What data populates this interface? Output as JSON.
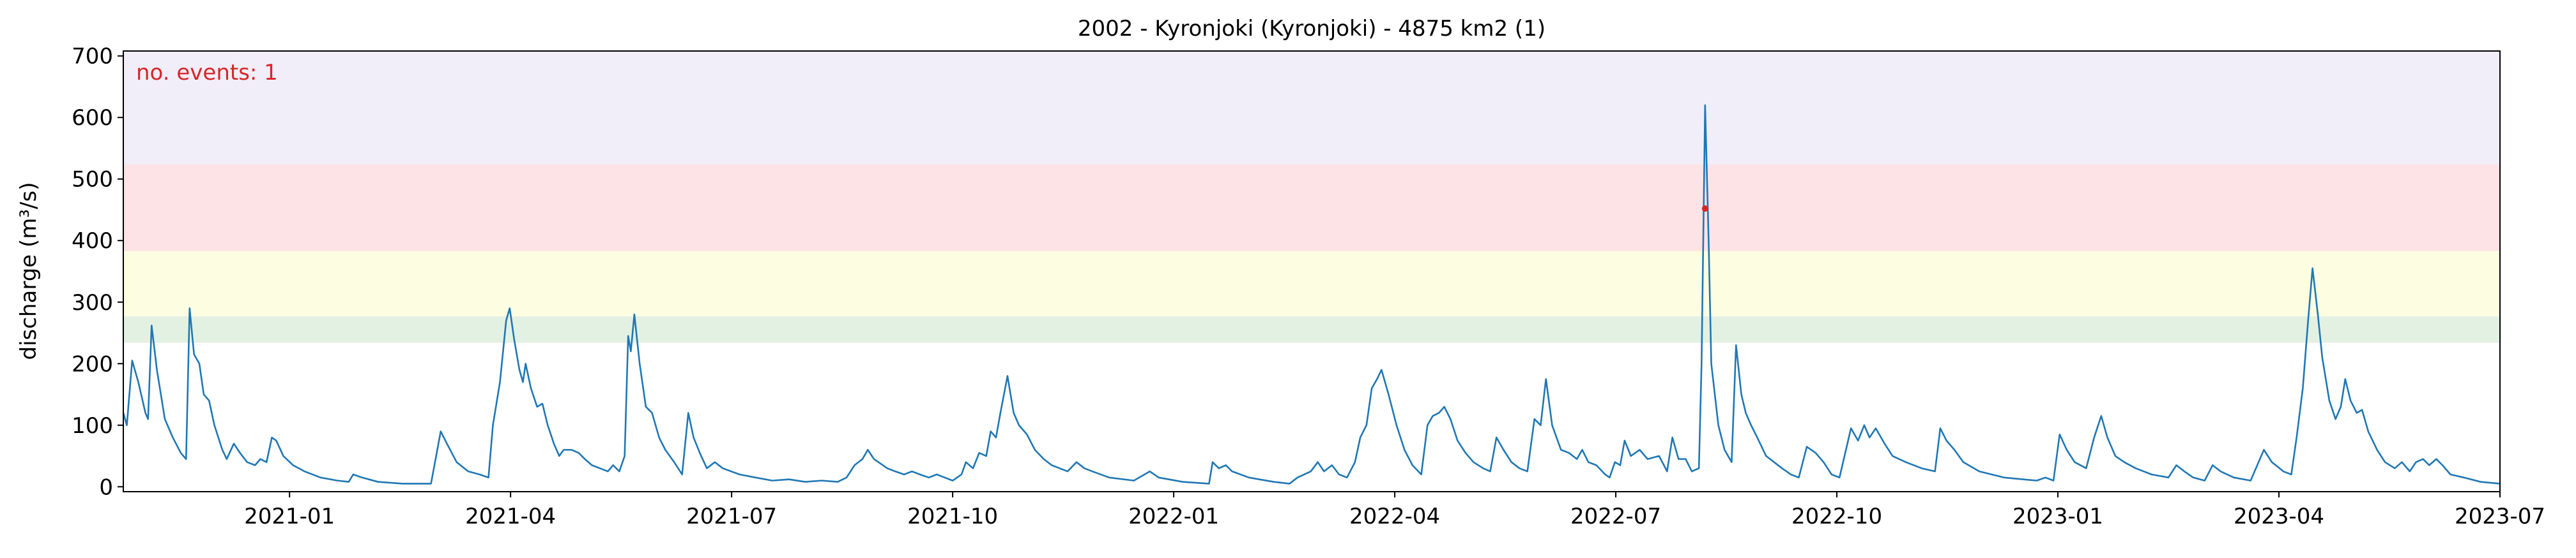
{
  "chart_data": {
    "type": "line",
    "title": "2002 - Kyronjoki (Kyronjoki) - 4875 km2 (1)",
    "y_label": "discharge (m³/s)",
    "annotation": "no. events: 1",
    "annotation_color": "#d62728",
    "xlim": [
      2020.812,
      2023.5
    ],
    "ylim": [
      -8,
      708
    ],
    "xticks": [
      {
        "value": 2021.0,
        "label": "2021-01"
      },
      {
        "value": 2021.25,
        "label": "2021-04"
      },
      {
        "value": 2021.5,
        "label": "2021-07"
      },
      {
        "value": 2021.75,
        "label": "2021-10"
      },
      {
        "value": 2022.0,
        "label": "2022-01"
      },
      {
        "value": 2022.25,
        "label": "2022-04"
      },
      {
        "value": 2022.5,
        "label": "2022-07"
      },
      {
        "value": 2022.75,
        "label": "2022-10"
      },
      {
        "value": 2023.0,
        "label": "2023-01"
      },
      {
        "value": 2023.25,
        "label": "2023-04"
      },
      {
        "value": 2023.5,
        "label": "2023-07"
      }
    ],
    "yticks": [
      0,
      100,
      200,
      300,
      400,
      500,
      600,
      700
    ],
    "bands": [
      {
        "from": 234,
        "to": 277,
        "color": "#e3f1e3"
      },
      {
        "from": 277,
        "to": 383,
        "color": "#fdfde2"
      },
      {
        "from": 383,
        "to": 524,
        "color": "#fde3e6"
      },
      {
        "from": 524,
        "to": 708,
        "color": "#f1eefa"
      }
    ],
    "events": {
      "x": [
        2022.601
      ],
      "values": [
        452
      ],
      "color": "#d62728"
    },
    "series": [
      {
        "color": "#1f77b4",
        "x": [
          2020.812,
          2020.816,
          2020.822,
          2020.829,
          2020.837,
          2020.84,
          2020.844,
          2020.85,
          2020.859,
          2020.868,
          2020.877,
          2020.883,
          2020.887,
          2020.892,
          2020.898,
          2020.903,
          2020.909,
          2020.915,
          2020.924,
          2020.929,
          2020.937,
          2020.944,
          2020.952,
          2020.961,
          2020.967,
          2020.974,
          2020.98,
          2020.985,
          2020.993,
          2021.004,
          2021.017,
          2021.035,
          2021.054,
          2021.067,
          2021.072,
          2021.082,
          2021.1,
          2021.128,
          2021.16,
          2021.171,
          2021.178,
          2021.189,
          2021.202,
          2021.215,
          2021.225,
          2021.23,
          2021.238,
          2021.245,
          2021.249,
          2021.254,
          2021.26,
          2021.264,
          2021.267,
          2021.273,
          2021.28,
          2021.286,
          2021.292,
          2021.299,
          2021.305,
          2021.31,
          2021.319,
          2021.327,
          2021.334,
          2021.342,
          2021.351,
          2021.36,
          2021.366,
          2021.373,
          2021.379,
          2021.383,
          2021.386,
          2021.39,
          2021.396,
          2021.403,
          2021.41,
          2021.418,
          2021.425,
          2021.435,
          2021.444,
          2021.451,
          2021.457,
          2021.464,
          2021.472,
          2021.481,
          2021.49,
          2021.509,
          2021.527,
          2021.546,
          2021.565,
          2021.583,
          2021.602,
          2021.62,
          2021.63,
          2021.639,
          2021.648,
          2021.654,
          2021.661,
          2021.676,
          2021.685,
          2021.695,
          2021.704,
          2021.713,
          2021.723,
          2021.732,
          2021.741,
          2021.75,
          2021.76,
          2021.765,
          2021.773,
          2021.78,
          2021.788,
          2021.793,
          2021.799,
          2021.804,
          2021.812,
          2021.819,
          2021.825,
          2021.834,
          2021.843,
          2021.853,
          2021.862,
          2021.871,
          2021.88,
          2021.89,
          2021.899,
          2021.908,
          2021.927,
          2021.955,
          2021.973,
          2021.983,
          2022.01,
          2022.04,
          2022.044,
          2022.051,
          2022.059,
          2022.066,
          2022.085,
          2022.113,
          2022.131,
          2022.14,
          2022.155,
          2022.163,
          2022.17,
          2022.179,
          2022.187,
          2022.196,
          2022.205,
          2022.211,
          2022.218,
          2022.224,
          2022.23,
          2022.235,
          2022.243,
          2022.252,
          2022.261,
          2022.27,
          2022.28,
          2022.287,
          2022.293,
          2022.3,
          2022.306,
          2022.313,
          2022.321,
          2022.33,
          2022.339,
          2022.35,
          2022.358,
          2022.365,
          2022.373,
          2022.382,
          2022.391,
          2022.4,
          2022.408,
          2022.415,
          2022.421,
          2022.428,
          2022.438,
          2022.447,
          2022.456,
          2022.462,
          2022.469,
          2022.478,
          2022.488,
          2022.493,
          2022.499,
          2022.505,
          2022.51,
          2022.517,
          2022.527,
          2022.536,
          2022.549,
          2022.558,
          2022.564,
          2022.571,
          2022.579,
          2022.586,
          2022.594,
          2022.597,
          2022.601,
          2022.605,
          2022.608,
          2022.616,
          2022.623,
          2022.631,
          2022.636,
          2022.642,
          2022.647,
          2022.653,
          2022.66,
          2022.67,
          2022.679,
          2022.688,
          2022.698,
          2022.707,
          2022.716,
          2022.726,
          2022.735,
          2022.744,
          2022.753,
          2022.766,
          2022.774,
          2022.781,
          2022.787,
          2022.794,
          2022.804,
          2022.813,
          2022.828,
          2022.846,
          2022.861,
          2022.867,
          2022.874,
          2022.883,
          2022.893,
          2022.911,
          2022.939,
          2022.976,
          2022.986,
          2022.995,
          2023.002,
          2023.01,
          2023.019,
          2023.032,
          2023.041,
          2023.049,
          2023.056,
          2023.065,
          2023.075,
          2023.088,
          2023.106,
          2023.125,
          2023.134,
          2023.143,
          2023.153,
          2023.166,
          2023.175,
          2023.184,
          2023.199,
          2023.218,
          2023.233,
          2023.242,
          2023.255,
          2023.264,
          2023.27,
          2023.277,
          2023.283,
          2023.288,
          2023.294,
          2023.299,
          2023.307,
          2023.314,
          2023.32,
          2023.325,
          2023.331,
          2023.338,
          2023.344,
          2023.351,
          2023.361,
          2023.37,
          2023.381,
          2023.389,
          2023.398,
          2023.405,
          2023.413,
          2023.42,
          2023.428,
          2023.435,
          2023.444,
          2023.459,
          2023.478,
          2023.5
        ],
        "values": [
          120,
          100,
          205,
          170,
          120,
          110,
          262,
          190,
          110,
          80,
          55,
          45,
          290,
          215,
          200,
          150,
          140,
          100,
          60,
          45,
          70,
          55,
          40,
          35,
          45,
          40,
          80,
          75,
          50,
          35,
          25,
          15,
          10,
          8,
          20,
          15,
          8,
          5,
          5,
          90,
          70,
          40,
          25,
          20,
          15,
          100,
          170,
          270,
          290,
          240,
          190,
          170,
          200,
          160,
          130,
          135,
          100,
          70,
          50,
          60,
          60,
          55,
          45,
          35,
          30,
          25,
          35,
          25,
          50,
          245,
          220,
          280,
          200,
          130,
          120,
          80,
          60,
          40,
          20,
          120,
          80,
          55,
          30,
          40,
          30,
          20,
          15,
          10,
          12,
          8,
          10,
          8,
          15,
          35,
          45,
          60,
          45,
          30,
          25,
          20,
          25,
          20,
          15,
          20,
          15,
          10,
          20,
          40,
          30,
          55,
          50,
          90,
          80,
          120,
          180,
          120,
          100,
          85,
          60,
          45,
          35,
          30,
          25,
          40,
          30,
          25,
          15,
          10,
          25,
          15,
          8,
          5,
          40,
          30,
          35,
          25,
          15,
          8,
          5,
          15,
          25,
          40,
          25,
          35,
          20,
          15,
          40,
          80,
          100,
          160,
          175,
          190,
          150,
          100,
          60,
          35,
          20,
          100,
          115,
          120,
          130,
          110,
          75,
          55,
          40,
          30,
          25,
          80,
          60,
          40,
          30,
          25,
          110,
          100,
          175,
          100,
          60,
          55,
          45,
          60,
          40,
          35,
          20,
          15,
          40,
          35,
          75,
          50,
          60,
          45,
          50,
          25,
          80,
          45,
          45,
          25,
          30,
          200,
          620,
          400,
          200,
          100,
          60,
          40,
          230,
          150,
          120,
          100,
          80,
          50,
          40,
          30,
          20,
          15,
          65,
          55,
          40,
          20,
          15,
          95,
          75,
          100,
          80,
          95,
          70,
          50,
          40,
          30,
          25,
          95,
          75,
          60,
          40,
          25,
          15,
          10,
          15,
          10,
          85,
          60,
          40,
          30,
          80,
          115,
          80,
          50,
          40,
          30,
          20,
          15,
          35,
          25,
          15,
          10,
          35,
          25,
          15,
          10,
          60,
          40,
          25,
          20,
          80,
          160,
          270,
          355,
          280,
          210,
          140,
          110,
          130,
          175,
          140,
          120,
          125,
          90,
          60,
          40,
          30,
          40,
          25,
          40,
          45,
          35,
          45,
          35,
          20,
          15,
          8,
          5
        ]
      }
    ]
  }
}
